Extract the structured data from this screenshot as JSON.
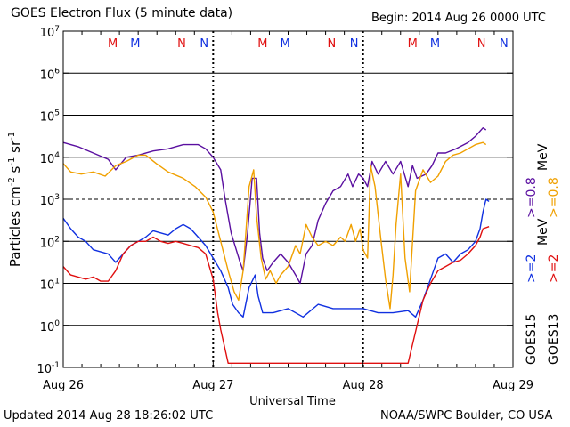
{
  "header": {
    "title": "GOES Electron Flux (5 minute data)",
    "begin": "Begin: 2014 Aug 26 0000 UTC"
  },
  "footer": {
    "updated": "Updated 2014 Aug 28 18:26:02 UTC",
    "credit": "NOAA/SWPC Boulder, CO USA"
  },
  "colors": {
    "goes15_ge08": "#5a0fa0",
    "goes13_ge08": "#f0a000",
    "goes15_ge2": "#1030e0",
    "goes13_ge2": "#e01010",
    "axis": "#000000"
  },
  "chart_data": {
    "type": "line",
    "title": "GOES Electron Flux (5 minute data)",
    "xlabel": "Universal Time",
    "ylabel": "Particles cm^-2 s^-1 sr^-1",
    "x_unit": "days since 2014 Aug 26 0000 UTC",
    "xlim": [
      0,
      3
    ],
    "ylim_log10": [
      -1,
      7
    ],
    "y_scale": "log",
    "x_ticks": [
      {
        "x": 0,
        "label": "Aug 26"
      },
      {
        "x": 1,
        "label": "Aug 27"
      },
      {
        "x": 2,
        "label": "Aug 28"
      },
      {
        "x": 3,
        "label": "Aug 29"
      }
    ],
    "y_ticks": [
      {
        "exp": 7,
        "label": "10^7"
      },
      {
        "exp": 6,
        "label": "10^6"
      },
      {
        "exp": 5,
        "label": "10^5"
      },
      {
        "exp": 4,
        "label": "10^4"
      },
      {
        "exp": 3,
        "label": "10^3"
      },
      {
        "exp": 2,
        "label": "10^2"
      },
      {
        "exp": 1,
        "label": "10^1"
      },
      {
        "exp": 0,
        "label": "10^0"
      },
      {
        "exp": -1,
        "label": "10^-1"
      }
    ],
    "grid": "horizontal lines at each decade",
    "alert_threshold_log10": 3,
    "magnetopause_markers": [
      {
        "x": 0.33,
        "label": "M",
        "color": "#e01010"
      },
      {
        "x": 0.48,
        "label": "M",
        "color": "#1030e0"
      },
      {
        "x": 0.79,
        "label": "N",
        "color": "#e01010"
      },
      {
        "x": 0.94,
        "label": "N",
        "color": "#1030e0"
      },
      {
        "x": 1.33,
        "label": "M",
        "color": "#e01010"
      },
      {
        "x": 1.48,
        "label": "M",
        "color": "#1030e0"
      },
      {
        "x": 1.79,
        "label": "N",
        "color": "#e01010"
      },
      {
        "x": 1.94,
        "label": "N",
        "color": "#1030e0"
      },
      {
        "x": 2.33,
        "label": "M",
        "color": "#e01010"
      },
      {
        "x": 2.48,
        "label": "M",
        "color": "#1030e0"
      },
      {
        "x": 2.79,
        "label": "N",
        "color": "#e01010"
      },
      {
        "x": 2.94,
        "label": "N",
        "color": "#1030e0"
      }
    ],
    "legend": {
      "placement": "right, rotated",
      "energies": [
        {
          "label": ">=0.8 MeV",
          "parts": [
            ">=0.8",
            ">=0.8",
            "MeV"
          ]
        },
        {
          "label": ">=2 MeV",
          "parts": [
            ">=2",
            ">=2",
            "MeV"
          ]
        }
      ],
      "satellites": [
        "GOES15",
        "GOES13"
      ]
    },
    "series": [
      {
        "name": "GOES15 >=0.8 MeV",
        "color": "#5a0fa0",
        "points": [
          [
            0,
            4.35
          ],
          [
            0.1,
            4.25
          ],
          [
            0.2,
            4.1
          ],
          [
            0.3,
            3.95
          ],
          [
            0.35,
            3.7
          ],
          [
            0.42,
            4.0
          ],
          [
            0.5,
            4.05
          ],
          [
            0.6,
            4.15
          ],
          [
            0.7,
            4.2
          ],
          [
            0.8,
            4.3
          ],
          [
            0.9,
            4.3
          ],
          [
            0.95,
            4.2
          ],
          [
            1.0,
            4.0
          ],
          [
            1.05,
            3.7
          ],
          [
            1.08,
            3.0
          ],
          [
            1.12,
            2.2
          ],
          [
            1.18,
            1.5
          ],
          [
            1.2,
            1.3
          ],
          [
            1.23,
            2.2
          ],
          [
            1.26,
            3.5
          ],
          [
            1.29,
            3.5
          ],
          [
            1.31,
            2.2
          ],
          [
            1.33,
            1.6
          ],
          [
            1.36,
            1.3
          ],
          [
            1.4,
            1.5
          ],
          [
            1.45,
            1.7
          ],
          [
            1.5,
            1.5
          ],
          [
            1.55,
            1.2
          ],
          [
            1.58,
            1.0
          ],
          [
            1.62,
            1.7
          ],
          [
            1.66,
            1.9
          ],
          [
            1.7,
            2.5
          ],
          [
            1.75,
            2.9
          ],
          [
            1.8,
            3.2
          ],
          [
            1.85,
            3.3
          ],
          [
            1.9,
            3.6
          ],
          [
            1.93,
            3.3
          ],
          [
            1.97,
            3.6
          ],
          [
            2.0,
            3.5
          ],
          [
            2.03,
            3.3
          ],
          [
            2.06,
            3.9
          ],
          [
            2.1,
            3.6
          ],
          [
            2.15,
            3.9
          ],
          [
            2.2,
            3.6
          ],
          [
            2.25,
            3.9
          ],
          [
            2.3,
            3.3
          ],
          [
            2.33,
            3.8
          ],
          [
            2.36,
            3.5
          ],
          [
            2.42,
            3.6
          ],
          [
            2.46,
            3.8
          ],
          [
            2.5,
            4.1
          ],
          [
            2.55,
            4.1
          ],
          [
            2.62,
            4.2
          ],
          [
            2.7,
            4.35
          ],
          [
            2.75,
            4.5
          ],
          [
            2.8,
            4.7
          ],
          [
            2.82,
            4.65
          ]
        ]
      },
      {
        "name": "GOES13 >=0.8 MeV",
        "color": "#f0a000",
        "points": [
          [
            0,
            3.85
          ],
          [
            0.05,
            3.65
          ],
          [
            0.12,
            3.6
          ],
          [
            0.2,
            3.65
          ],
          [
            0.28,
            3.55
          ],
          [
            0.35,
            3.8
          ],
          [
            0.42,
            3.9
          ],
          [
            0.5,
            4.05
          ],
          [
            0.55,
            4.05
          ],
          [
            0.62,
            3.85
          ],
          [
            0.7,
            3.65
          ],
          [
            0.8,
            3.5
          ],
          [
            0.88,
            3.3
          ],
          [
            0.95,
            3.05
          ],
          [
            1.0,
            2.7
          ],
          [
            1.05,
            2.0
          ],
          [
            1.1,
            1.3
          ],
          [
            1.14,
            0.8
          ],
          [
            1.17,
            0.6
          ],
          [
            1.2,
            1.3
          ],
          [
            1.24,
            3.3
          ],
          [
            1.27,
            3.7
          ],
          [
            1.29,
            2.6
          ],
          [
            1.32,
            1.6
          ],
          [
            1.35,
            1.1
          ],
          [
            1.38,
            1.3
          ],
          [
            1.42,
            1.0
          ],
          [
            1.45,
            1.2
          ],
          [
            1.5,
            1.4
          ],
          [
            1.55,
            1.9
          ],
          [
            1.58,
            1.7
          ],
          [
            1.62,
            2.4
          ],
          [
            1.66,
            2.1
          ],
          [
            1.7,
            1.9
          ],
          [
            1.75,
            2.0
          ],
          [
            1.8,
            1.9
          ],
          [
            1.85,
            2.1
          ],
          [
            1.88,
            2.0
          ],
          [
            1.92,
            2.4
          ],
          [
            1.95,
            2.0
          ],
          [
            1.98,
            2.3
          ],
          [
            2.0,
            1.8
          ],
          [
            2.03,
            1.6
          ],
          [
            2.05,
            3.8
          ],
          [
            2.08,
            3.3
          ],
          [
            2.12,
            2.0
          ],
          [
            2.15,
            1.1
          ],
          [
            2.18,
            0.4
          ],
          [
            2.2,
            1.2
          ],
          [
            2.22,
            2.4
          ],
          [
            2.25,
            3.6
          ],
          [
            2.28,
            1.6
          ],
          [
            2.31,
            0.8
          ],
          [
            2.35,
            3.2
          ],
          [
            2.4,
            3.7
          ],
          [
            2.45,
            3.4
          ],
          [
            2.5,
            3.55
          ],
          [
            2.55,
            3.9
          ],
          [
            2.6,
            4.05
          ],
          [
            2.65,
            4.1
          ],
          [
            2.7,
            4.2
          ],
          [
            2.75,
            4.3
          ],
          [
            2.8,
            4.35
          ],
          [
            2.82,
            4.3
          ]
        ]
      },
      {
        "name": "GOES15 >=2 MeV",
        "color": "#1030e0",
        "points": [
          [
            0,
            2.55
          ],
          [
            0.05,
            2.3
          ],
          [
            0.1,
            2.1
          ],
          [
            0.15,
            2.0
          ],
          [
            0.2,
            1.8
          ],
          [
            0.3,
            1.7
          ],
          [
            0.35,
            1.5
          ],
          [
            0.4,
            1.7
          ],
          [
            0.45,
            1.9
          ],
          [
            0.5,
            2.0
          ],
          [
            0.55,
            2.1
          ],
          [
            0.6,
            2.25
          ],
          [
            0.65,
            2.2
          ],
          [
            0.7,
            2.15
          ],
          [
            0.75,
            2.3
          ],
          [
            0.8,
            2.4
          ],
          [
            0.85,
            2.3
          ],
          [
            0.9,
            2.1
          ],
          [
            0.95,
            1.9
          ],
          [
            1.0,
            1.6
          ],
          [
            1.05,
            1.3
          ],
          [
            1.1,
            0.9
          ],
          [
            1.13,
            0.5
          ],
          [
            1.17,
            0.3
          ],
          [
            1.2,
            0.2
          ],
          [
            1.24,
            0.9
          ],
          [
            1.28,
            1.2
          ],
          [
            1.3,
            0.7
          ],
          [
            1.33,
            0.3
          ],
          [
            1.4,
            0.3
          ],
          [
            1.5,
            0.4
          ],
          [
            1.6,
            0.2
          ],
          [
            1.7,
            0.5
          ],
          [
            1.8,
            0.4
          ],
          [
            1.9,
            0.4
          ],
          [
            2.0,
            0.4
          ],
          [
            2.1,
            0.3
          ],
          [
            2.2,
            0.3
          ],
          [
            2.3,
            0.35
          ],
          [
            2.35,
            0.2
          ],
          [
            2.4,
            0.6
          ],
          [
            2.45,
            1.1
          ],
          [
            2.5,
            1.6
          ],
          [
            2.55,
            1.7
          ],
          [
            2.6,
            1.5
          ],
          [
            2.65,
            1.7
          ],
          [
            2.7,
            1.8
          ],
          [
            2.75,
            2.0
          ],
          [
            2.78,
            2.3
          ],
          [
            2.8,
            2.7
          ],
          [
            2.82,
            3.0
          ],
          [
            2.84,
            2.95
          ]
        ]
      },
      {
        "name": "GOES13 >=2 MeV",
        "color": "#e01010",
        "points": [
          [
            0,
            1.4
          ],
          [
            0.05,
            1.2
          ],
          [
            0.1,
            1.15
          ],
          [
            0.15,
            1.1
          ],
          [
            0.2,
            1.15
          ],
          [
            0.25,
            1.05
          ],
          [
            0.3,
            1.05
          ],
          [
            0.35,
            1.3
          ],
          [
            0.4,
            1.7
          ],
          [
            0.45,
            1.9
          ],
          [
            0.5,
            2.0
          ],
          [
            0.55,
            2.0
          ],
          [
            0.6,
            2.1
          ],
          [
            0.65,
            2.0
          ],
          [
            0.7,
            1.95
          ],
          [
            0.75,
            2.0
          ],
          [
            0.8,
            1.95
          ],
          [
            0.85,
            1.9
          ],
          [
            0.9,
            1.85
          ],
          [
            0.95,
            1.7
          ],
          [
            1.0,
            1.1
          ],
          [
            1.03,
            0.3
          ],
          [
            1.05,
            -0.1
          ],
          [
            1.1,
            -0.9
          ],
          [
            1.2,
            -0.9
          ],
          [
            1.3,
            -0.9
          ],
          [
            1.4,
            -0.9
          ],
          [
            1.5,
            -0.9
          ],
          [
            1.6,
            -0.9
          ],
          [
            1.7,
            -0.9
          ],
          [
            1.8,
            -0.9
          ],
          [
            1.9,
            -0.9
          ],
          [
            2.0,
            -0.9
          ],
          [
            2.1,
            -0.9
          ],
          [
            2.2,
            -0.9
          ],
          [
            2.3,
            -0.9
          ],
          [
            2.4,
            0.6
          ],
          [
            2.45,
            1.0
          ],
          [
            2.5,
            1.3
          ],
          [
            2.55,
            1.4
          ],
          [
            2.6,
            1.5
          ],
          [
            2.65,
            1.55
          ],
          [
            2.7,
            1.7
          ],
          [
            2.75,
            1.9
          ],
          [
            2.78,
            2.1
          ],
          [
            2.8,
            2.3
          ],
          [
            2.84,
            2.35
          ]
        ]
      }
    ]
  }
}
